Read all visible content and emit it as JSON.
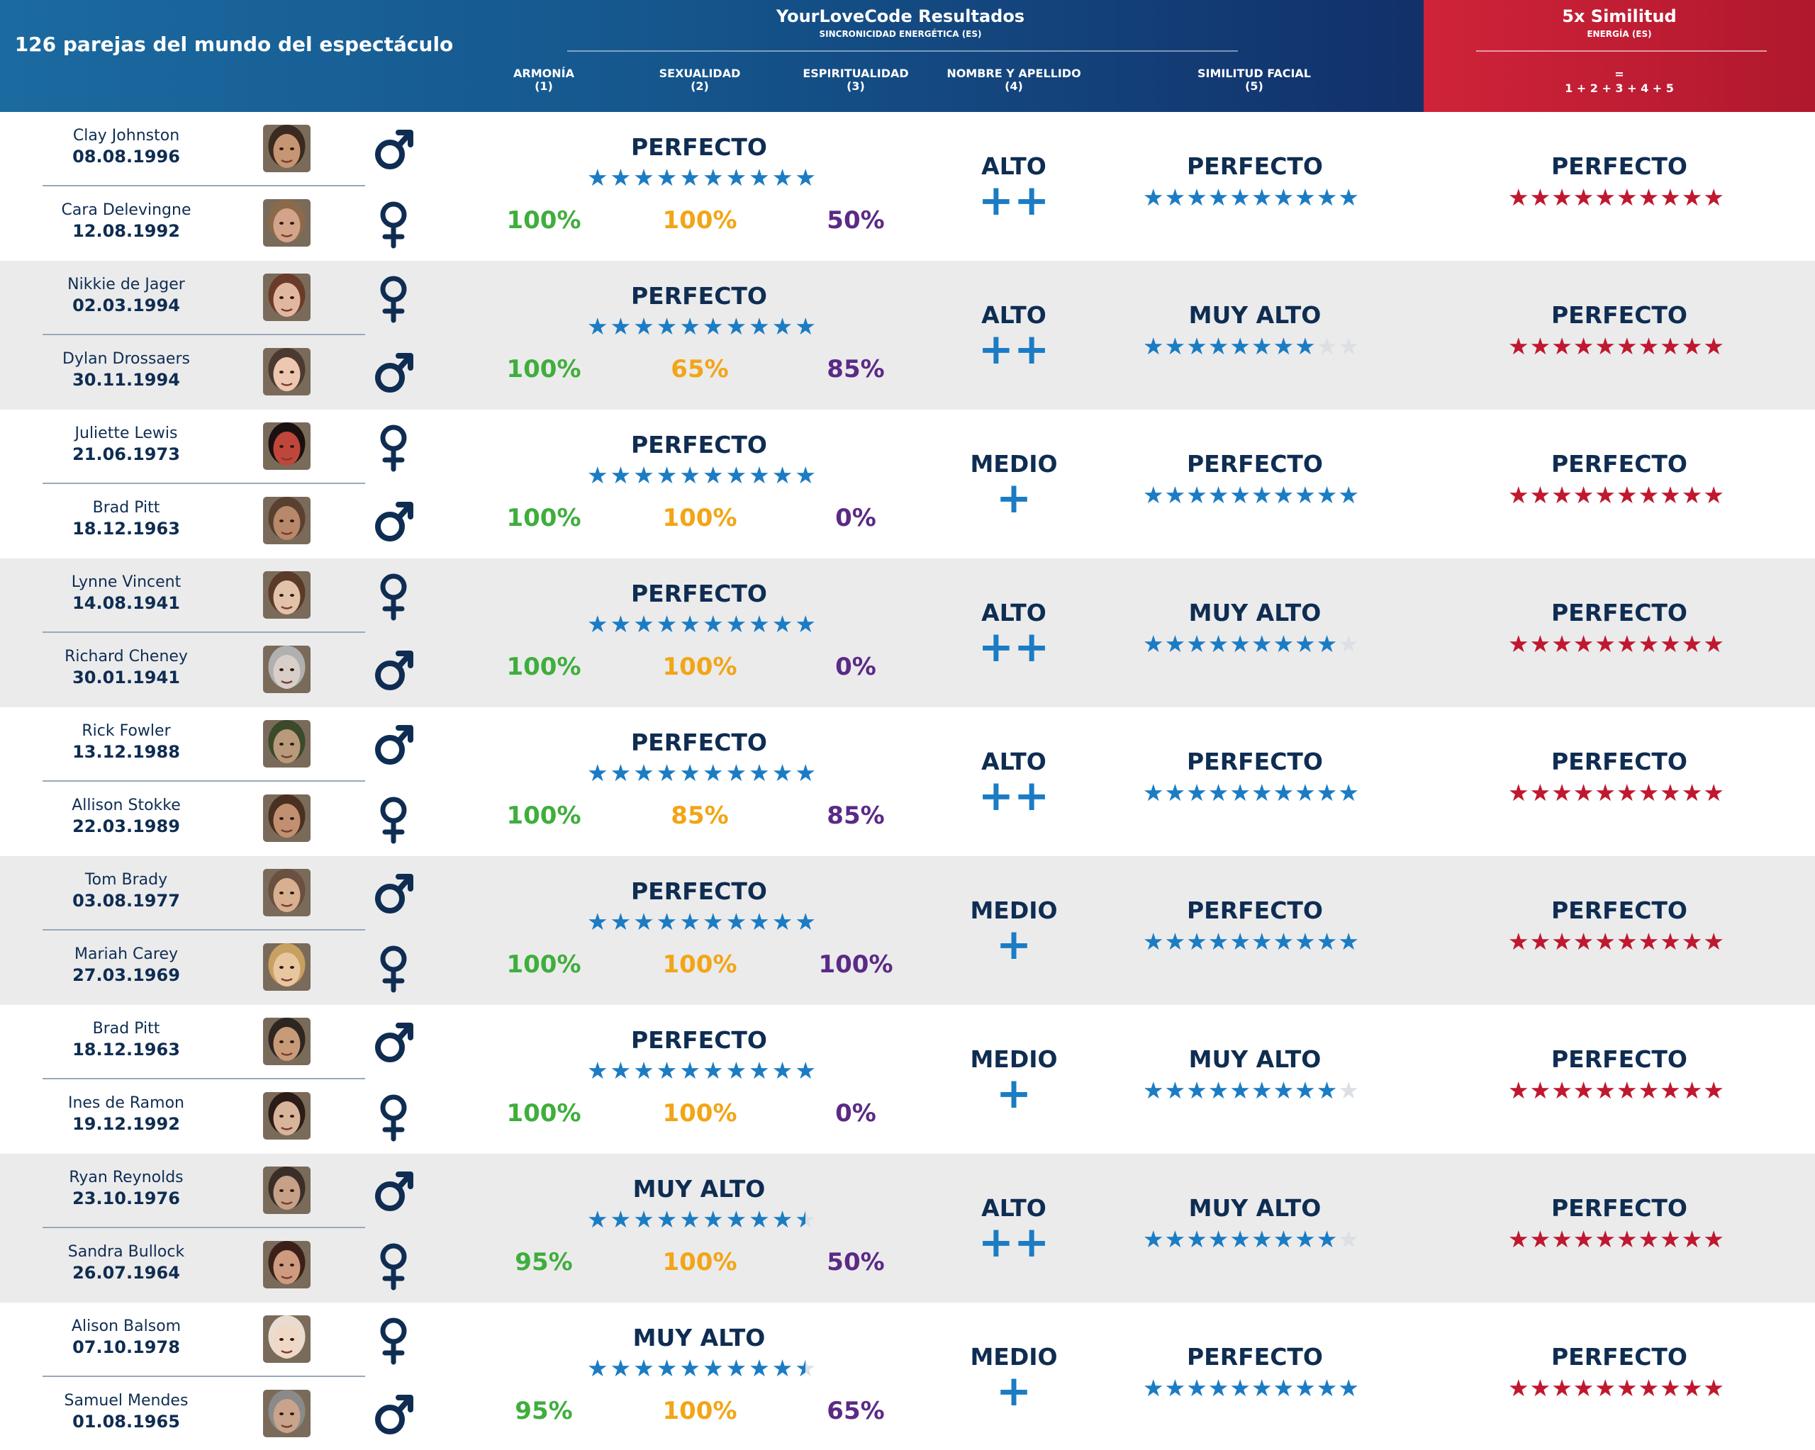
{
  "header": {
    "title": "126 parejas del mundo del espectáculo",
    "results_title": "YourLoveCode Resultados",
    "results_subtitle": "SINCRONICIDAD ENERGÉTICA (ES)",
    "columns": [
      {
        "label": "ARMONÍA",
        "num": "(1)"
      },
      {
        "label": "SEXUALIDAD",
        "num": "(2)"
      },
      {
        "label": "ESPIRITUALIDAD",
        "num": "(3)"
      },
      {
        "label": "NOMBRE Y APELLIDO",
        "num": "(4)"
      },
      {
        "label": "SIMILITUD FACIAL",
        "num": "(5)"
      }
    ],
    "similarity_title": "5x Similitud",
    "similarity_subtitle": "ENERGÍA (ES)",
    "similarity_eq": "=",
    "similarity_formula": "1 + 2 + 3 + 4 + 5"
  },
  "colors": {
    "navy": "#0f2d52",
    "blue": "#1b7cc4",
    "green": "#3fae3c",
    "orange": "#f2a516",
    "purple": "#5b2a86",
    "red": "#c0182f",
    "alt_row": "#ebebec"
  },
  "icons": {
    "male": "male-symbol-icon",
    "female": "female-symbol-icon",
    "star": "star-icon",
    "plus": "plus-icon"
  },
  "couples": [
    {
      "p1": {
        "name": "Clay Johnston",
        "date": "08.08.1996",
        "sex": "male"
      },
      "p2": {
        "name": "Cara Delevingne",
        "date": "12.08.1992",
        "sex": "female"
      },
      "energy_level": "PERFECTO",
      "energy_stars": 10,
      "armonia": "100%",
      "sexualidad": "100%",
      "espiritualidad": "50%",
      "name_level": "ALTO",
      "name_plus": "++",
      "facial_level": "PERFECTO",
      "facial_stars": 10,
      "total_level": "PERFECTO",
      "total_stars": 10
    },
    {
      "p1": {
        "name": "Nikkie de Jager",
        "date": "02.03.1994",
        "sex": "female"
      },
      "p2": {
        "name": "Dylan Drossaers",
        "date": "30.11.1994",
        "sex": "male"
      },
      "energy_level": "PERFECTO",
      "energy_stars": 10,
      "armonia": "100%",
      "sexualidad": "65%",
      "espiritualidad": "85%",
      "name_level": "ALTO",
      "name_plus": "++",
      "facial_level": "MUY ALTO",
      "facial_stars": 8,
      "total_level": "PERFECTO",
      "total_stars": 10
    },
    {
      "p1": {
        "name": "Juliette Lewis",
        "date": "21.06.1973",
        "sex": "female"
      },
      "p2": {
        "name": "Brad Pitt",
        "date": "18.12.1963",
        "sex": "male"
      },
      "energy_level": "PERFECTO",
      "energy_stars": 10,
      "armonia": "100%",
      "sexualidad": "100%",
      "espiritualidad": "0%",
      "name_level": "MEDIO",
      "name_plus": "+",
      "facial_level": "PERFECTO",
      "facial_stars": 10,
      "total_level": "PERFECTO",
      "total_stars": 10
    },
    {
      "p1": {
        "name": "Lynne Vincent",
        "date": "14.08.1941",
        "sex": "female"
      },
      "p2": {
        "name": "Richard Cheney",
        "date": "30.01.1941",
        "sex": "male"
      },
      "energy_level": "PERFECTO",
      "energy_stars": 10,
      "armonia": "100%",
      "sexualidad": "100%",
      "espiritualidad": "0%",
      "name_level": "ALTO",
      "name_plus": "++",
      "facial_level": "MUY ALTO",
      "facial_stars": 9,
      "total_level": "PERFECTO",
      "total_stars": 10
    },
    {
      "p1": {
        "name": "Rick Fowler",
        "date": "13.12.1988",
        "sex": "male"
      },
      "p2": {
        "name": "Allison Stokke",
        "date": "22.03.1989",
        "sex": "female"
      },
      "energy_level": "PERFECTO",
      "energy_stars": 10,
      "armonia": "100%",
      "sexualidad": "85%",
      "espiritualidad": "85%",
      "name_level": "ALTO",
      "name_plus": "++",
      "facial_level": "PERFECTO",
      "facial_stars": 10,
      "total_level": "PERFECTO",
      "total_stars": 10
    },
    {
      "p1": {
        "name": "Tom Brady",
        "date": "03.08.1977",
        "sex": "male"
      },
      "p2": {
        "name": "Mariah Carey",
        "date": "27.03.1969",
        "sex": "female"
      },
      "energy_level": "PERFECTO",
      "energy_stars": 10,
      "armonia": "100%",
      "sexualidad": "100%",
      "espiritualidad": "100%",
      "name_level": "MEDIO",
      "name_plus": "+",
      "facial_level": "PERFECTO",
      "facial_stars": 10,
      "total_level": "PERFECTO",
      "total_stars": 10
    },
    {
      "p1": {
        "name": "Brad Pitt",
        "date": "18.12.1963",
        "sex": "male"
      },
      "p2": {
        "name": "Ines de Ramon",
        "date": "19.12.1992",
        "sex": "female"
      },
      "energy_level": "PERFECTO",
      "energy_stars": 10,
      "armonia": "100%",
      "sexualidad": "100%",
      "espiritualidad": "0%",
      "name_level": "MEDIO",
      "name_plus": "+",
      "facial_level": "MUY ALTO",
      "facial_stars": 9,
      "total_level": "PERFECTO",
      "total_stars": 10
    },
    {
      "p1": {
        "name": "Ryan Reynolds",
        "date": "23.10.1976",
        "sex": "male"
      },
      "p2": {
        "name": "Sandra Bullock",
        "date": "26.07.1964",
        "sex": "female"
      },
      "energy_level": "MUY ALTO",
      "energy_stars": 9.5,
      "armonia": "95%",
      "sexualidad": "100%",
      "espiritualidad": "50%",
      "name_level": "ALTO",
      "name_plus": "++",
      "facial_level": "MUY ALTO",
      "facial_stars": 9,
      "total_level": "PERFECTO",
      "total_stars": 10
    },
    {
      "p1": {
        "name": "Alison Balsom",
        "date": "07.10.1978",
        "sex": "female"
      },
      "p2": {
        "name": "Samuel Mendes",
        "date": "01.08.1965",
        "sex": "male"
      },
      "energy_level": "MUY ALTO",
      "energy_stars": 9.5,
      "armonia": "95%",
      "sexualidad": "100%",
      "espiritualidad": "65%",
      "name_level": "MEDIO",
      "name_plus": "+",
      "facial_level": "PERFECTO",
      "facial_stars": 10,
      "total_level": "PERFECTO",
      "total_stars": 10
    }
  ]
}
